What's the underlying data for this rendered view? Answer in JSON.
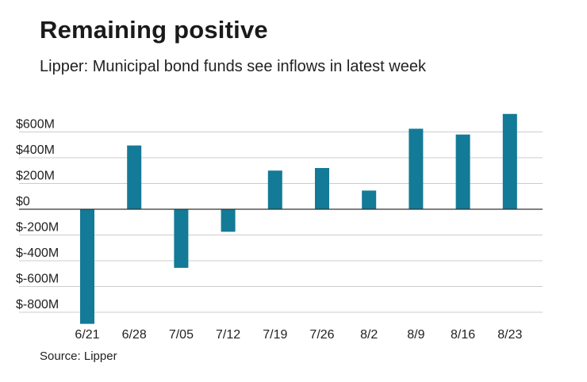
{
  "header": {
    "title": "Remaining positive",
    "subtitle": "Lipper: Municipal bond funds see inflows in latest week"
  },
  "footer": {
    "source": "Source: Lipper"
  },
  "colors": {
    "bar": "#137a97",
    "grid": "#cccccc",
    "zero_line": "#333333"
  },
  "chart_data": {
    "type": "bar",
    "title": "Remaining positive",
    "subtitle": "Lipper: Municipal bond funds see inflows in latest week",
    "xlabel": "",
    "ylabel": "",
    "categories": [
      "6/21",
      "6/28",
      "7/05",
      "7/12",
      "7/19",
      "7/26",
      "8/2",
      "8/9",
      "8/16",
      "8/23"
    ],
    "values": [
      -890,
      495,
      -455,
      -175,
      300,
      320,
      145,
      625,
      580,
      740
    ],
    "unit": "$ millions",
    "ylim": [
      -900,
      800
    ],
    "yticks": [
      600,
      400,
      200,
      0,
      -200,
      -400,
      -600,
      -800
    ],
    "ytick_labels": [
      "$600M",
      "$400M",
      "$200M",
      "$0",
      "$-200M",
      "$-400M",
      "$-600M",
      "$-800M"
    ],
    "grid": true,
    "legend": "none"
  }
}
